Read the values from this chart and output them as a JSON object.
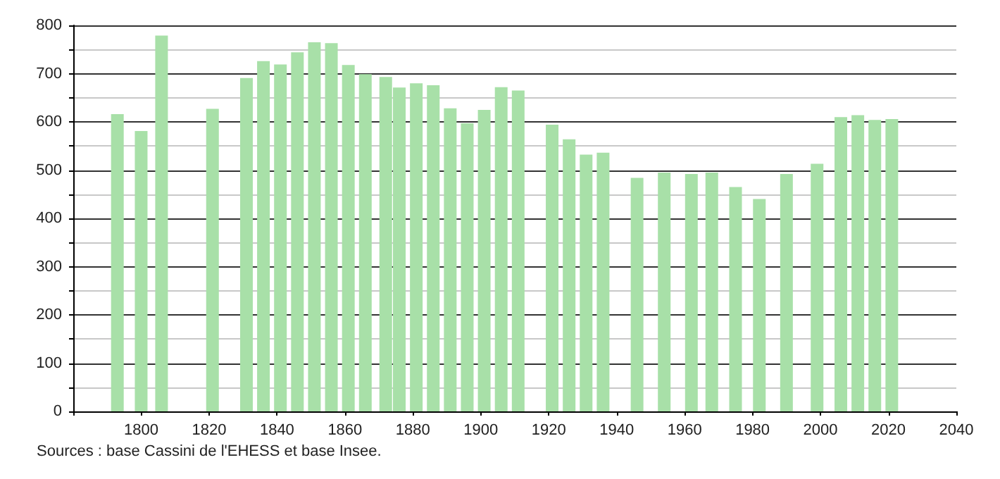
{
  "chart_data": {
    "type": "bar",
    "x": [
      1793,
      1800,
      1806,
      1821,
      1831,
      1836,
      1841,
      1846,
      1851,
      1856,
      1861,
      1866,
      1872,
      1876,
      1881,
      1886,
      1891,
      1896,
      1901,
      1906,
      1911,
      1921,
      1926,
      1931,
      1936,
      1946,
      1954,
      1962,
      1968,
      1975,
      1982,
      1990,
      1999,
      2006,
      2011,
      2016,
      2021
    ],
    "values": [
      616,
      581,
      779,
      627,
      691,
      726,
      719,
      744,
      765,
      763,
      718,
      699,
      693,
      671,
      680,
      676,
      628,
      597,
      625,
      672,
      665,
      594,
      564,
      532,
      536,
      484,
      495,
      492,
      495,
      465,
      440,
      492,
      513,
      610,
      614,
      604,
      606
    ],
    "color": "#a8e0a8",
    "xlim": [
      1780,
      2040
    ],
    "xticks": [
      {
        "value": 1780,
        "label": null
      },
      1800,
      1820,
      1840,
      1860,
      1880,
      1900,
      1920,
      1940,
      1960,
      1980,
      2000,
      2020,
      2040
    ],
    "ylim": [
      0,
      800
    ],
    "yticks": [
      0,
      {
        "value": 50,
        "label": null
      },
      100,
      {
        "value": 150,
        "label": null
      },
      200,
      {
        "value": 250,
        "label": null
      },
      300,
      {
        "value": 350,
        "label": null
      },
      400,
      {
        "value": 450,
        "label": null
      },
      500,
      {
        "value": 550,
        "label": null
      },
      600,
      {
        "value": 650,
        "label": null
      },
      700,
      {
        "value": 750,
        "label": null
      },
      800
    ],
    "grid": "y",
    "annotations": [
      "Sources : base Cassini de l'EHESS et base Insee."
    ]
  }
}
